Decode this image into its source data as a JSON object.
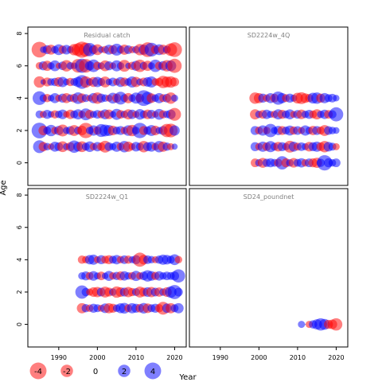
{
  "chart_data": {
    "type": "scatter",
    "subtype": "bubble-residuals",
    "xlabel": "Year",
    "ylabel": "Age",
    "xlim": [
      1982,
      2023
    ],
    "ylim": [
      -1.4,
      8.4
    ],
    "x_ticks": [
      1990,
      2000,
      2010,
      2020
    ],
    "y_ticks": [
      0,
      2,
      4,
      6,
      8
    ],
    "grid": false,
    "colors": {
      "positive": "#0000ff",
      "negative": "#ff0000",
      "alpha": 0.5
    },
    "legend": {
      "placement": "bottom-left",
      "entries": [
        {
          "label": "-4",
          "value": -4
        },
        {
          "label": "-2",
          "value": -2
        },
        {
          "label": "0",
          "value": 0
        },
        {
          "label": "2",
          "value": 2
        },
        {
          "label": "4",
          "value": 4
        }
      ]
    },
    "panels": [
      {
        "title": "Residual catch",
        "years": [
          1985,
          2020
        ],
        "ages": [
          1,
          2,
          3,
          4,
          5,
          6,
          7
        ],
        "residuals": {
          "7": [
            -4.0,
            0.6,
            1.2,
            -1.5,
            0.8,
            1.8,
            -1.0,
            1.4,
            0.7,
            -2.0,
            -2.6,
            -4.2,
            -3.1,
            2.8,
            1.2,
            -1.8,
            0.6,
            -0.8,
            1.5,
            -1.2,
            2.2,
            0.9,
            -1.6,
            1.1,
            -0.7,
            0.8,
            -2.0,
            1.6,
            -3.5,
            3.0,
            -1.1,
            1.8,
            -1.5,
            0.9,
            -2.5,
            -3.5
          ],
          "6": [
            -0.8,
            1.2,
            -1.6,
            0.7,
            1.8,
            -0.5,
            1.1,
            -2.0,
            0.8,
            0.6,
            -3.0,
            3.2,
            -3.0,
            1.3,
            2.5,
            -1.0,
            0.7,
            -1.8,
            1.2,
            -0.6,
            1.9,
            0.8,
            -2.2,
            0.5,
            -1.0,
            1.5,
            -2.4,
            0.9,
            -1.6,
            0.7,
            2.4,
            -1.0,
            1.3,
            -2.0,
            1.8,
            -3.2
          ],
          "5": [
            -2.0,
            0.4,
            -1.2,
            0.8,
            1.0,
            -1.4,
            1.6,
            0.6,
            -1.0,
            0.9,
            1.6,
            3.0,
            -2.0,
            0.8,
            -1.5,
            1.6,
            0.9,
            -1.8,
            0.6,
            1.1,
            -0.7,
            1.5,
            -1.2,
            0.8,
            1.9,
            -1.6,
            0.7,
            -1.1,
            1.4,
            1.9,
            -0.8,
            -1.0,
            -2.4,
            -1.8,
            -2.0,
            -1.2
          ],
          "4": [
            3.0,
            0.8,
            -1.0,
            0.6,
            1.5,
            -0.7,
            1.2,
            -1.5,
            0.8,
            -1.1,
            2.1,
            -1.3,
            0.9,
            -0.6,
            1.6,
            -2.0,
            1.2,
            0.8,
            -0.7,
            1.8,
            -1.2,
            2.6,
            0.9,
            -1.6,
            0.8,
            1.9,
            -1.1,
            4.0,
            2.5,
            -1.4,
            0.8,
            1.6,
            -0.9,
            1.1,
            -2.0,
            0.7
          ],
          "3": [
            0.9,
            -0.7,
            1.2,
            0.6,
            -1.0,
            0.8,
            1.4,
            -0.6,
            -1.3,
            0.9,
            1.6,
            -0.8,
            2.2,
            -1.2,
            0.7,
            1.1,
            -0.9,
            1.5,
            -1.4,
            0.6,
            1.9,
            -1.1,
            0.8,
            -1.6,
            1.3,
            -0.7,
            1.7,
            0.9,
            -1.4,
            1.2,
            -0.6,
            1.8,
            -1.0,
            0.8,
            1.4,
            -2.6
          ],
          "2": [
            4.0,
            -1.4,
            0.9,
            2.0,
            -0.8,
            1.3,
            -2.2,
            0.7,
            1.1,
            -1.8,
            0.9,
            -1.4,
            -3.8,
            0.8,
            1.6,
            -1.0,
            2.6,
            2.2,
            1.8,
            -1.4,
            0.9,
            1.2,
            -0.8,
            1.7,
            -2.0,
            0.8,
            3.8,
            -1.2,
            1.0,
            1.8,
            -1.4,
            0.7,
            1.2,
            -2.8,
            -3.0,
            1.6
          ],
          "1": [
            2.6,
            -1.3,
            0.8,
            -0.6,
            1.5,
            1.1,
            -1.8,
            0.7,
            -1.2,
            2.4,
            1.4,
            -1.8,
            0.9,
            1.7,
            -0.8,
            1.3,
            -1.0,
            -2.2,
            1.1,
            0.7,
            1.6,
            -0.9,
            2.0,
            -1.6,
            -0.7,
            1.4,
            0.9,
            -2.0,
            1.2,
            1.5,
            -0.8,
            2.0,
            -1.6,
            1.0,
            -0.7,
            0.5
          ]
        }
      },
      {
        "title": "SD2224w_4Q",
        "years": [
          1999,
          2020
        ],
        "ages": [
          0,
          1,
          2,
          3,
          4
        ],
        "residuals": {
          "4": [
            -2.0,
            -1.6,
            1.2,
            -0.8,
            1.5,
            -1.1,
            2.8,
            1.6,
            -0.9,
            1.2,
            0.7,
            -1.8,
            -2.2,
            -1.4,
            -1.0,
            1.8,
            2.0,
            -1.2,
            1.6,
            0.9,
            1.1,
            0.6
          ],
          "3": [
            -1.6,
            0.8,
            -1.1,
            1.3,
            0.7,
            -0.8,
            1.6,
            -1.2,
            0.9,
            1.5,
            -0.7,
            1.1,
            -1.4,
            0.8,
            1.2,
            -0.9,
            -1.6,
            0.8,
            1.3,
            -1.1,
            1.0,
            3.2
          ],
          "2": [
            1.2,
            -0.9,
            1.6,
            -0.8,
            2.8,
            0.7,
            1.3,
            -1.2,
            0.9,
            1.5,
            -1.0,
            1.1,
            -0.7,
            1.6,
            0.8,
            -1.3,
            1.2,
            -0.9,
            -1.8,
            1.1,
            0.8,
            0.6
          ],
          "1": [
            1.2,
            -0.8,
            1.6,
            -1.1,
            1.9,
            0.9,
            -1.4,
            1.2,
            0.8,
            -2.2,
            1.5,
            -0.9,
            1.1,
            0.7,
            -1.4,
            1.2,
            1.6,
            -1.1,
            -2.0,
            1.4,
            0.9,
            -0.7
          ],
          "0": [
            -1.1,
            0.8,
            -1.5,
            1.0,
            1.2,
            0.9,
            -1.0,
            2.8,
            -1.2,
            0.8,
            -1.4,
            0.9,
            1.3,
            -0.8,
            1.1,
            -1.2,
            -1.6,
            1.0,
            3.8,
            1.2,
            0.8,
            1.1
          ]
        }
      },
      {
        "title": "SD2224w_Q1",
        "years": [
          1996,
          2021
        ],
        "ages": [
          1,
          2,
          3,
          4
        ],
        "residuals": {
          "4": [
            -1.0,
            -0.8,
            1.3,
            1.6,
            -0.7,
            1.2,
            -0.9,
            -1.2,
            0.9,
            1.3,
            -0.8,
            1.1,
            -1.0,
            0.7,
            1.2,
            -3.2,
            -1.4,
            1.1,
            0.8,
            -0.7,
            1.0,
            1.6,
            1.4,
            0.9,
            1.8,
            -0.8
          ],
          "3": [
            0.8,
            1.2,
            -0.9,
            1.4,
            0.7,
            -1.1,
            0.6,
            1.5,
            -0.8,
            1.0,
            -1.2,
            1.3,
            0.8,
            -0.9,
            1.6,
            -0.8,
            1.1,
            2.0,
            1.4,
            -1.0,
            1.3,
            0.8,
            1.1,
            0.9,
            1.2,
            2.8
          ],
          "2": [
            2.8,
            1.0,
            -0.7,
            -1.4,
            -1.6,
            1.1,
            -1.8,
            -1.2,
            0.8,
            -2.0,
            -1.4,
            1.2,
            -1.6,
            -1.0,
            0.9,
            -1.8,
            -1.2,
            1.4,
            -1.6,
            1.1,
            -1.3,
            0.8,
            -1.4,
            2.0,
            3.2,
            1.1
          ],
          "1": [
            -1.6,
            1.0,
            -0.8,
            1.2,
            0.9,
            -0.7,
            1.4,
            -1.6,
            -1.2,
            0.8,
            1.5,
            1.8,
            -0.9,
            1.6,
            1.2,
            -1.1,
            1.7,
            -1.4,
            0.9,
            1.2,
            -1.0,
            -2.6,
            1.3,
            -1.6,
            0.9,
            1.6
          ]
        }
      },
      {
        "title": "SD24_poundnet",
        "years": [
          2011,
          2020
        ],
        "ages": [
          0
        ],
        "residuals": {
          "0": [
            0.7,
            0.0,
            -0.7,
            1.0,
            1.6,
            2.4,
            1.8,
            -1.2,
            -1.4,
            -2.4
          ]
        }
      }
    ]
  }
}
